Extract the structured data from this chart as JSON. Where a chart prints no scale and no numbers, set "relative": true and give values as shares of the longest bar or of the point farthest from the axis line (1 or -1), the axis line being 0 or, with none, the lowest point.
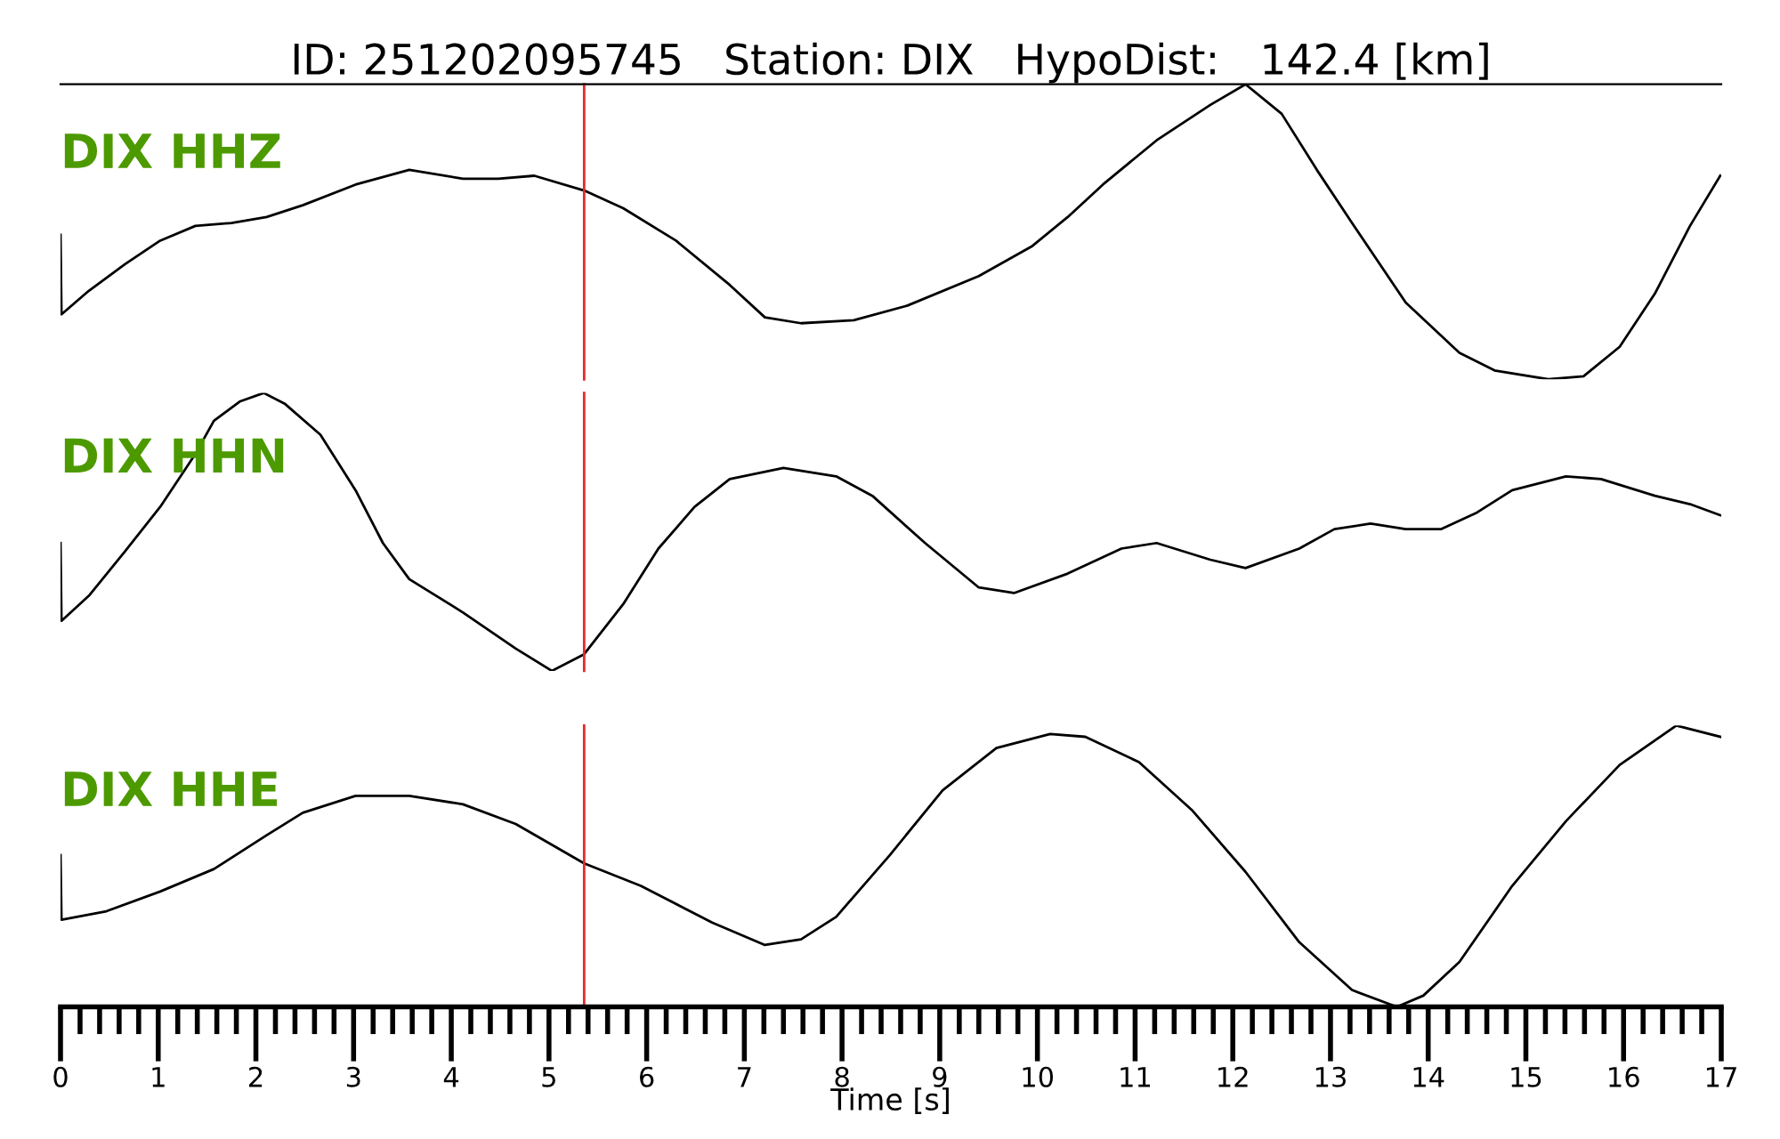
{
  "chart_data": [
    {
      "type": "line",
      "title": "ID: 251202095745   Station: DIX   HypoDist:   142.4 [km]",
      "relative": true,
      "xlim": [
        0,
        17
      ],
      "tick_labels": false,
      "grid": false,
      "annotations": [
        "DIX HHZ"
      ],
      "ref_lines": [
        {
          "axis": "x",
          "value": 5.36,
          "color": "#e8262a"
        }
      ],
      "series": [
        {
          "color": "#000000",
          "x": [
            0,
            0.01,
            0.29,
            0.66,
            1.02,
            1.38,
            1.75,
            2.11,
            2.48,
            3.02,
            3.57,
            4.12,
            4.48,
            4.85,
            5.36,
            5.76,
            6.3,
            6.85,
            7.21,
            7.58,
            8.12,
            8.67,
            9.4,
            9.94,
            10.31,
            10.67,
            11.22,
            11.77,
            12.13,
            12.5,
            12.86,
            13.22,
            13.77,
            14.32,
            14.68,
            15.23,
            15.59,
            15.96,
            16.32,
            16.68,
            16.99
          ],
          "values": [
            0.49,
            0.22,
            0.3,
            0.39,
            0.47,
            0.52,
            0.53,
            0.55,
            0.59,
            0.66,
            0.71,
            0.68,
            0.68,
            0.69,
            0.64,
            0.58,
            0.47,
            0.32,
            0.21,
            0.19,
            0.2,
            0.25,
            0.35,
            0.45,
            0.55,
            0.66,
            0.81,
            0.93,
            1.0,
            0.9,
            0.71,
            0.53,
            0.26,
            0.09,
            0.03,
            0,
            0.01,
            0.11,
            0.29,
            0.52,
            0.69
          ]
        }
      ]
    },
    {
      "type": "line",
      "relative": true,
      "xlim": [
        0,
        17
      ],
      "tick_labels": false,
      "grid": false,
      "annotations": [
        "DIX HHN"
      ],
      "ref_lines": [
        {
          "axis": "x",
          "value": 5.36,
          "color": "#e8262a"
        }
      ],
      "series": [
        {
          "color": "#000000",
          "x": [
            0,
            0.01,
            0.29,
            0.66,
            1.02,
            1.38,
            1.57,
            1.84,
            2.08,
            2.3,
            2.66,
            3.02,
            3.3,
            3.57,
            4.12,
            4.66,
            5.03,
            5.36,
            5.76,
            6.12,
            6.49,
            6.85,
            7.4,
            7.94,
            8.31,
            8.85,
            9.4,
            9.76,
            10.31,
            10.86,
            11.22,
            11.77,
            12.13,
            12.68,
            13.04,
            13.41,
            13.77,
            14.13,
            14.5,
            14.86,
            15.41,
            15.77,
            16.32,
            16.68,
            16.99
          ],
          "values": [
            0.46,
            0.18,
            0.27,
            0.43,
            0.59,
            0.78,
            0.9,
            0.97,
            1.0,
            0.96,
            0.85,
            0.65,
            0.46,
            0.33,
            0.21,
            0.08,
            0,
            0.06,
            0.24,
            0.44,
            0.59,
            0.69,
            0.73,
            0.7,
            0.63,
            0.46,
            0.3,
            0.28,
            0.35,
            0.44,
            0.46,
            0.4,
            0.37,
            0.44,
            0.51,
            0.53,
            0.51,
            0.51,
            0.57,
            0.65,
            0.7,
            0.69,
            0.63,
            0.6,
            0.56
          ]
        }
      ]
    },
    {
      "type": "line",
      "relative": true,
      "xlim": [
        0,
        17
      ],
      "xlabel": "Time [s]",
      "grid": false,
      "annotations": [
        "DIX HHE"
      ],
      "xticks": [
        0,
        {
          "value": 0.2,
          "label": null
        },
        {
          "value": 0.4,
          "label": null
        },
        {
          "value": 0.6,
          "label": null
        },
        {
          "value": 0.8,
          "label": null
        },
        1,
        {
          "value": 1.2,
          "label": null
        },
        {
          "value": 1.4,
          "label": null
        },
        {
          "value": 1.6,
          "label": null
        },
        {
          "value": 1.8,
          "label": null
        },
        2,
        {
          "value": 2.2,
          "label": null
        },
        {
          "value": 2.4,
          "label": null
        },
        {
          "value": 2.6,
          "label": null
        },
        {
          "value": 2.8,
          "label": null
        },
        3,
        {
          "value": 3.2,
          "label": null
        },
        {
          "value": 3.4,
          "label": null
        },
        {
          "value": 3.6,
          "label": null
        },
        {
          "value": 3.8,
          "label": null
        },
        4,
        {
          "value": 4.2,
          "label": null
        },
        {
          "value": 4.4,
          "label": null
        },
        {
          "value": 4.6,
          "label": null
        },
        {
          "value": 4.8,
          "label": null
        },
        5,
        {
          "value": 5.2,
          "label": null
        },
        {
          "value": 5.4,
          "label": null
        },
        {
          "value": 5.6,
          "label": null
        },
        {
          "value": 5.8,
          "label": null
        },
        6,
        {
          "value": 6.2,
          "label": null
        },
        {
          "value": 6.4,
          "label": null
        },
        {
          "value": 6.6,
          "label": null
        },
        {
          "value": 6.8,
          "label": null
        },
        7,
        {
          "value": 7.2,
          "label": null
        },
        {
          "value": 7.4,
          "label": null
        },
        {
          "value": 7.6,
          "label": null
        },
        {
          "value": 7.8,
          "label": null
        },
        8,
        {
          "value": 8.2,
          "label": null
        },
        {
          "value": 8.4,
          "label": null
        },
        {
          "value": 8.6,
          "label": null
        },
        {
          "value": 8.8,
          "label": null
        },
        9,
        {
          "value": 9.2,
          "label": null
        },
        {
          "value": 9.4,
          "label": null
        },
        {
          "value": 9.6,
          "label": null
        },
        {
          "value": 9.8,
          "label": null
        },
        10,
        {
          "value": 10.2,
          "label": null
        },
        {
          "value": 10.4,
          "label": null
        },
        {
          "value": 10.6,
          "label": null
        },
        {
          "value": 10.8,
          "label": null
        },
        11,
        {
          "value": 11.2,
          "label": null
        },
        {
          "value": 11.4,
          "label": null
        },
        {
          "value": 11.6,
          "label": null
        },
        {
          "value": 11.8,
          "label": null
        },
        12,
        {
          "value": 12.2,
          "label": null
        },
        {
          "value": 12.4,
          "label": null
        },
        {
          "value": 12.6,
          "label": null
        },
        {
          "value": 12.8,
          "label": null
        },
        13,
        {
          "value": 13.2,
          "label": null
        },
        {
          "value": 13.4,
          "label": null
        },
        {
          "value": 13.6,
          "label": null
        },
        {
          "value": 13.8,
          "label": null
        },
        14,
        {
          "value": 14.2,
          "label": null
        },
        {
          "value": 14.4,
          "label": null
        },
        {
          "value": 14.6,
          "label": null
        },
        {
          "value": 14.8,
          "label": null
        },
        15,
        {
          "value": 15.2,
          "label": null
        },
        {
          "value": 15.4,
          "label": null
        },
        {
          "value": 15.6,
          "label": null
        },
        {
          "value": 15.8,
          "label": null
        },
        16,
        {
          "value": 16.2,
          "label": null
        },
        {
          "value": 16.4,
          "label": null
        },
        {
          "value": 16.6,
          "label": null
        },
        {
          "value": 16.8,
          "label": null
        },
        17
      ],
      "ref_lines": [
        {
          "axis": "x",
          "value": 5.36,
          "color": "#e8262a"
        }
      ],
      "series": [
        {
          "color": "#000000",
          "x": [
            0,
            0.01,
            0.47,
            1.02,
            1.57,
            2.11,
            2.48,
            3.02,
            3.57,
            4.12,
            4.66,
            5.36,
            5.94,
            6.67,
            7.21,
            7.58,
            7.94,
            8.49,
            9.03,
            9.58,
            10.13,
            10.49,
            11.04,
            11.58,
            12.13,
            12.68,
            13.22,
            13.68,
            13.95,
            14.32,
            14.86,
            15.41,
            15.96,
            16.54,
            16.99
          ],
          "values": [
            0.54,
            0.31,
            0.34,
            0.41,
            0.49,
            0.61,
            0.69,
            0.75,
            0.75,
            0.72,
            0.65,
            0.51,
            0.43,
            0.3,
            0.22,
            0.24,
            0.32,
            0.54,
            0.77,
            0.92,
            0.97,
            0.96,
            0.87,
            0.7,
            0.48,
            0.23,
            0.06,
            0,
            0.04,
            0.16,
            0.43,
            0.66,
            0.86,
            1.0,
            0.96
          ]
        }
      ]
    }
  ]
}
